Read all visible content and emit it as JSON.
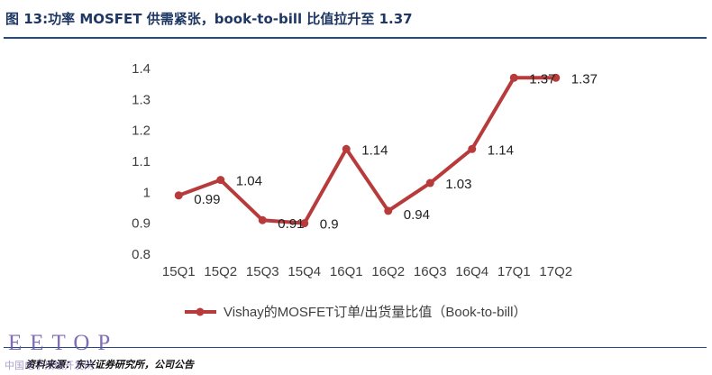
{
  "header": {
    "title": "图 13:功率 MOSFET 供需紧张，book-to-bill 比值拉升至 1.37"
  },
  "chart_data": {
    "type": "line",
    "categories": [
      "15Q1",
      "15Q2",
      "15Q3",
      "15Q4",
      "16Q1",
      "16Q2",
      "16Q3",
      "16Q4",
      "17Q1",
      "17Q2"
    ],
    "series": [
      {
        "name": "Vishay的MOSFET订单/出货量比值（Book-to-bill）",
        "values": [
          0.99,
          1.04,
          0.91,
          0.9,
          1.14,
          0.94,
          1.03,
          1.14,
          1.37,
          1.37
        ],
        "labels": [
          "0.99",
          "1.04",
          "0.91",
          "0.9",
          "1.14",
          "0.94",
          "1.03",
          "1.14",
          "1.37",
          "1.37"
        ],
        "color": "#b83b3b"
      }
    ],
    "yticks": [
      "0.8",
      "0.9",
      "1",
      "1.1",
      "1.2",
      "1.3",
      "1.4"
    ],
    "ylim": [
      0.8,
      1.4
    ],
    "grid": false,
    "legend_position": "bottom"
  },
  "footer": {
    "source": "资料来源：东兴证券研究所，公司公告",
    "watermark": "EETOP",
    "watermark_sub": "中国电子顶级开发网"
  }
}
